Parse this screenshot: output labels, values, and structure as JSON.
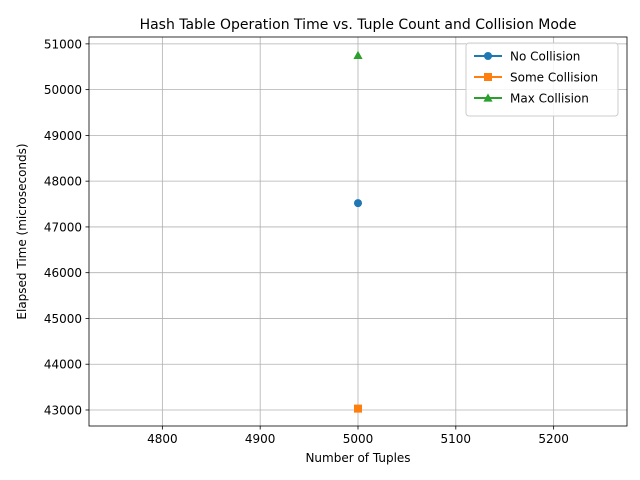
{
  "chart_data": {
    "type": "line",
    "title": "Hash Table Operation Time vs. Tuple Count and Collision Mode",
    "xlabel": "Number of Tuples",
    "ylabel": "Elapsed Time (microseconds)",
    "xlim": [
      4725,
      5275
    ],
    "ylim": [
      42650,
      51150
    ],
    "xticks": [
      4800,
      4900,
      5000,
      5100,
      5200
    ],
    "yticks": [
      43000,
      44000,
      45000,
      46000,
      47000,
      48000,
      49000,
      50000,
      51000
    ],
    "grid": true,
    "legend_position": "top-right",
    "series": [
      {
        "name": "No Collision",
        "marker": "circle",
        "color": "#1f77b4",
        "x": [
          5000
        ],
        "y": [
          47520
        ]
      },
      {
        "name": "Some Collision",
        "marker": "square",
        "color": "#ff7f0e",
        "x": [
          5000
        ],
        "y": [
          43030
        ]
      },
      {
        "name": "Max Collision",
        "marker": "triangle",
        "color": "#2ca02c",
        "x": [
          5000
        ],
        "y": [
          50750
        ]
      }
    ]
  }
}
